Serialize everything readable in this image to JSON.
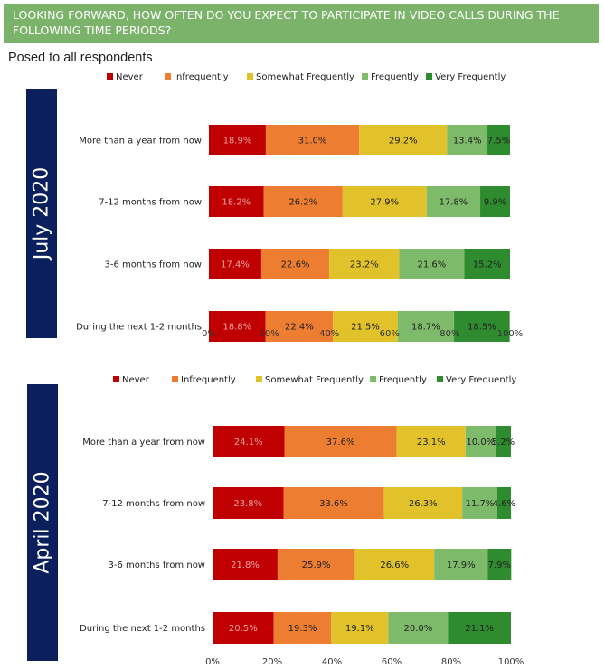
{
  "header": {
    "title": "LOOKING FORWARD, HOW OFTEN DO YOU EXPECT TO PARTICIPATE IN VIDEO CALLS DURING THE FOLLOWING TIME PERIODS?"
  },
  "subtitle": "Posed to all respondents",
  "colors": {
    "Never": "#c00000",
    "Infrequently": "#ed7d31",
    "Somewhat Frequently": "#e1c22b",
    "Frequently": "#7dbb6a",
    "Very Frequently": "#2e8b2e",
    "panel_bg": "#0b1f5c",
    "header_bg": "#7cb36b"
  },
  "chart_data": [
    {
      "type": "bar",
      "orientation": "horizontal-stacked-100",
      "panel_label": "July 2020",
      "categories": [
        "More than a year from now",
        "7-12 months from now",
        "3-6 months from now",
        "During the next 1-2 months"
      ],
      "series": [
        {
          "name": "Never",
          "values": [
            18.9,
            18.2,
            17.4,
            18.8
          ]
        },
        {
          "name": "Infrequently",
          "values": [
            31.0,
            26.2,
            22.6,
            22.4
          ]
        },
        {
          "name": "Somewhat Frequently",
          "values": [
            29.2,
            27.9,
            23.2,
            21.5
          ]
        },
        {
          "name": "Frequently",
          "values": [
            13.4,
            17.8,
            21.6,
            18.7
          ]
        },
        {
          "name": "Very Frequently",
          "values": [
            7.5,
            9.9,
            15.2,
            18.5
          ]
        }
      ],
      "x_ticks": [
        "0%",
        "20%",
        "40%",
        "60%",
        "80%",
        "100%"
      ],
      "xlim": [
        0,
        100
      ],
      "legend": "top"
    },
    {
      "type": "bar",
      "orientation": "horizontal-stacked-100",
      "panel_label": "April 2020",
      "categories": [
        "More than a year from now",
        "7-12 months from now",
        "3-6 months from now",
        "During the next 1-2 months"
      ],
      "series": [
        {
          "name": "Never",
          "values": [
            24.1,
            23.8,
            21.8,
            20.5
          ]
        },
        {
          "name": "Infrequently",
          "values": [
            37.6,
            33.6,
            25.9,
            19.3
          ]
        },
        {
          "name": "Somewhat Frequently",
          "values": [
            23.1,
            26.3,
            26.6,
            19.1
          ]
        },
        {
          "name": "Frequently",
          "values": [
            10.0,
            11.7,
            17.9,
            20.0
          ]
        },
        {
          "name": "Very Frequently",
          "values": [
            5.2,
            4.6,
            7.9,
            21.1
          ]
        }
      ],
      "x_ticks": [
        "0%",
        "20%",
        "40%",
        "60%",
        "80%",
        "100%"
      ],
      "xlim": [
        0,
        100
      ],
      "legend": "top"
    }
  ]
}
